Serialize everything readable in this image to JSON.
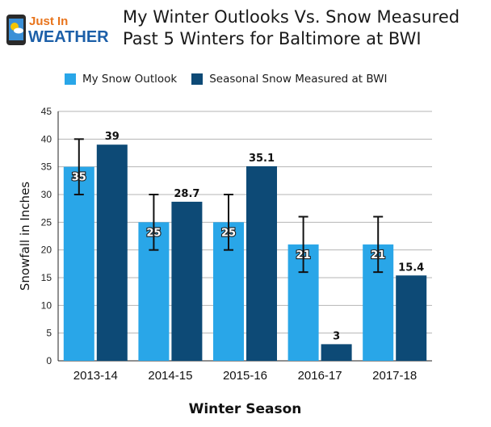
{
  "logo": {
    "line1": "Just In",
    "line2": "WEATHER"
  },
  "title_lines": [
    "My Winter Outlooks Vs. Snow Measured",
    "Past 5 Winters for Baltimore at BWI"
  ],
  "colors": {
    "outlook": "#29a6e8",
    "measured": "#0d4a76"
  },
  "chart_data": {
    "type": "bar",
    "title": "My Winter Outlooks Vs. Snow Measured Past 5 Winters for Baltimore at BWI",
    "xlabel": "Winter Season",
    "ylabel": "Snowfall in Inches",
    "ylim": [
      0,
      45
    ],
    "yticks": [
      0,
      5,
      10,
      15,
      20,
      25,
      30,
      35,
      40,
      45
    ],
    "categories": [
      "2013-14",
      "2014-15",
      "2015-16",
      "2016-17",
      "2017-18"
    ],
    "series": [
      {
        "name": "My Snow Outlook",
        "values": [
          35,
          25,
          25,
          21,
          21
        ],
        "labels": [
          "35",
          "25",
          "25",
          "21",
          "21"
        ],
        "error_low": [
          30,
          20,
          20,
          16,
          16
        ],
        "error_high": [
          40,
          30,
          30,
          26,
          26
        ]
      },
      {
        "name": "Seasonal Snow Measured at BWI",
        "values": [
          39,
          28.7,
          35.1,
          3,
          15.4
        ],
        "labels": [
          "39",
          "28.7",
          "35.1",
          "3",
          "15.4"
        ]
      }
    ],
    "grid": true,
    "legend_position": "top"
  }
}
